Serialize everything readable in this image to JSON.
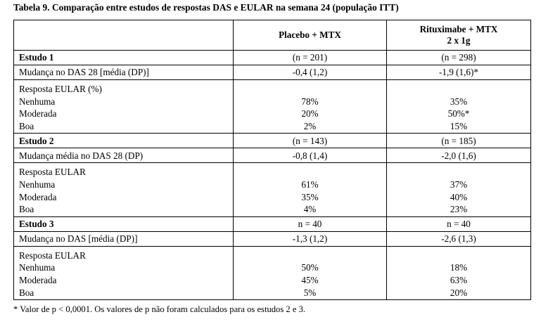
{
  "caption": "Tabela 9. Comparação entre estudos de respostas DAS e EULAR na semana 24 (população ITT)",
  "header": {
    "col2": "Placebo + MTX",
    "col3_line1": "Rituximabe + MTX",
    "col3_line2": "2 x 1g"
  },
  "estudo1": {
    "label": "Estudo 1",
    "placebo_n": "(n = 201)",
    "ritux_n": "(n = 298)",
    "das_label": "Mudança no DAS 28 [média (DP)]",
    "das_placebo": "-0,4 (1,2)",
    "das_ritux": "-1,9 (1,6)*",
    "eular_title": "Resposta EULAR (%)",
    "r1_label": "Nenhuma",
    "r1_placebo": "78%",
    "r1_ritux": "35%",
    "r2_label": "Moderada",
    "r2_placebo": "20%",
    "r2_ritux": "50%*",
    "r3_label": "Boa",
    "r3_placebo": "2%",
    "r3_ritux": "15%"
  },
  "estudo2": {
    "label": "Estudo 2",
    "placebo_n": "(n = 143)",
    "ritux_n": "(n = 185)",
    "das_label": "Mudança média no DAS 28 (DP)",
    "das_placebo": "-0,8 (1,4)",
    "das_ritux": "-2,0 (1,6)",
    "eular_title": "Resposta EULAR",
    "r1_label": "Nenhuma",
    "r1_placebo": "61%",
    "r1_ritux": "37%",
    "r2_label": "Moderada",
    "r2_placebo": "35%",
    "r2_ritux": "40%",
    "r3_label": "Boa",
    "r3_placebo": "4%",
    "r3_ritux": "23%"
  },
  "estudo3": {
    "label": "Estudo 3",
    "placebo_n": "n = 40",
    "ritux_n": "n = 40",
    "das_label": "Mudança no DAS [média (DP)]",
    "das_placebo": "-1,3 (1,2)",
    "das_ritux": "-2,6 (1,3)",
    "eular_title": "Resposta EULAR",
    "r1_label": "Nenhuma",
    "r1_placebo": "50%",
    "r1_ritux": "18%",
    "r2_label": "Moderada",
    "r2_placebo": "45%",
    "r2_ritux": "63%",
    "r3_label": "Boa",
    "r3_placebo": "5%",
    "r3_ritux": "20%"
  },
  "footnote": "* Valor de p < 0,0001. Os valores de p não foram calculados para os estudos 2 e 3."
}
